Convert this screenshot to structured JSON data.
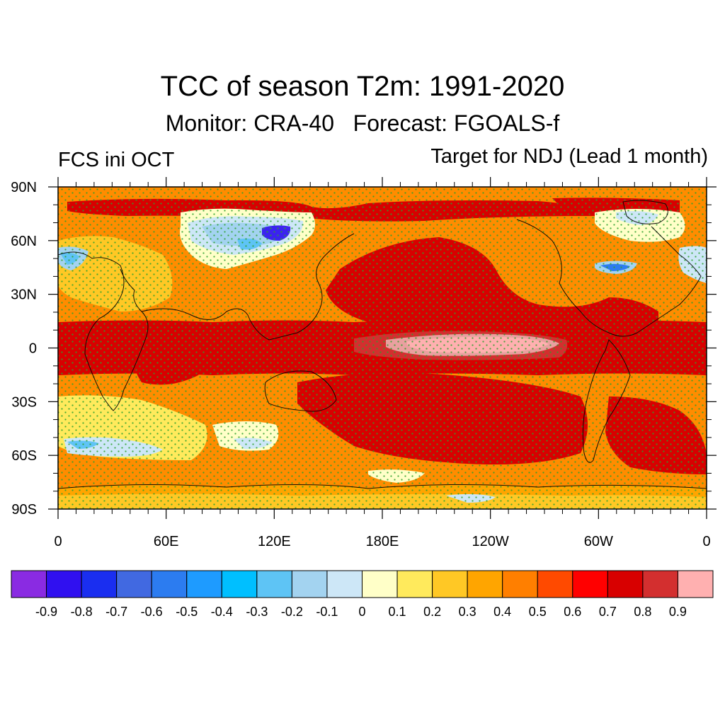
{
  "header": {
    "title": "TCC of season T2m: 1991-2020",
    "subtitle": "Monitor: CRA-40   Forecast: FGOALS-f",
    "left_label": "FCS ini OCT",
    "right_label": "Target for NDJ (Lead 1 month)"
  },
  "map": {
    "lat_labels": [
      "90N",
      "60N",
      "30N",
      "0",
      "30S",
      "60S",
      "90S"
    ],
    "lon_labels": [
      "0",
      "60E",
      "120E",
      "180E",
      "120W",
      "60W",
      "0"
    ],
    "stipple_color": "#2ca02c",
    "coastline_color": "#000000"
  },
  "colorbar": {
    "colors": [
      "#8a2be2",
      "#3010f0",
      "#1a2ef0",
      "#4169e1",
      "#2c7cf0",
      "#1e9bff",
      "#00bfff",
      "#5ec4f5",
      "#a3d3f0",
      "#cde7f7",
      "#ffffc8",
      "#ffea5c",
      "#ffc825",
      "#ffa500",
      "#ff7f00",
      "#ff4a00",
      "#ff0000",
      "#d80000",
      "#d32f2f",
      "#ffb0b0"
    ],
    "labels": [
      "-0.9",
      "-0.8",
      "-0.7",
      "-0.6",
      "-0.5",
      "-0.4",
      "-0.3",
      "-0.2",
      "-0.1",
      "0",
      "0.1",
      "0.2",
      "0.3",
      "0.4",
      "0.5",
      "0.6",
      "0.7",
      "0.8",
      "0.9"
    ]
  }
}
